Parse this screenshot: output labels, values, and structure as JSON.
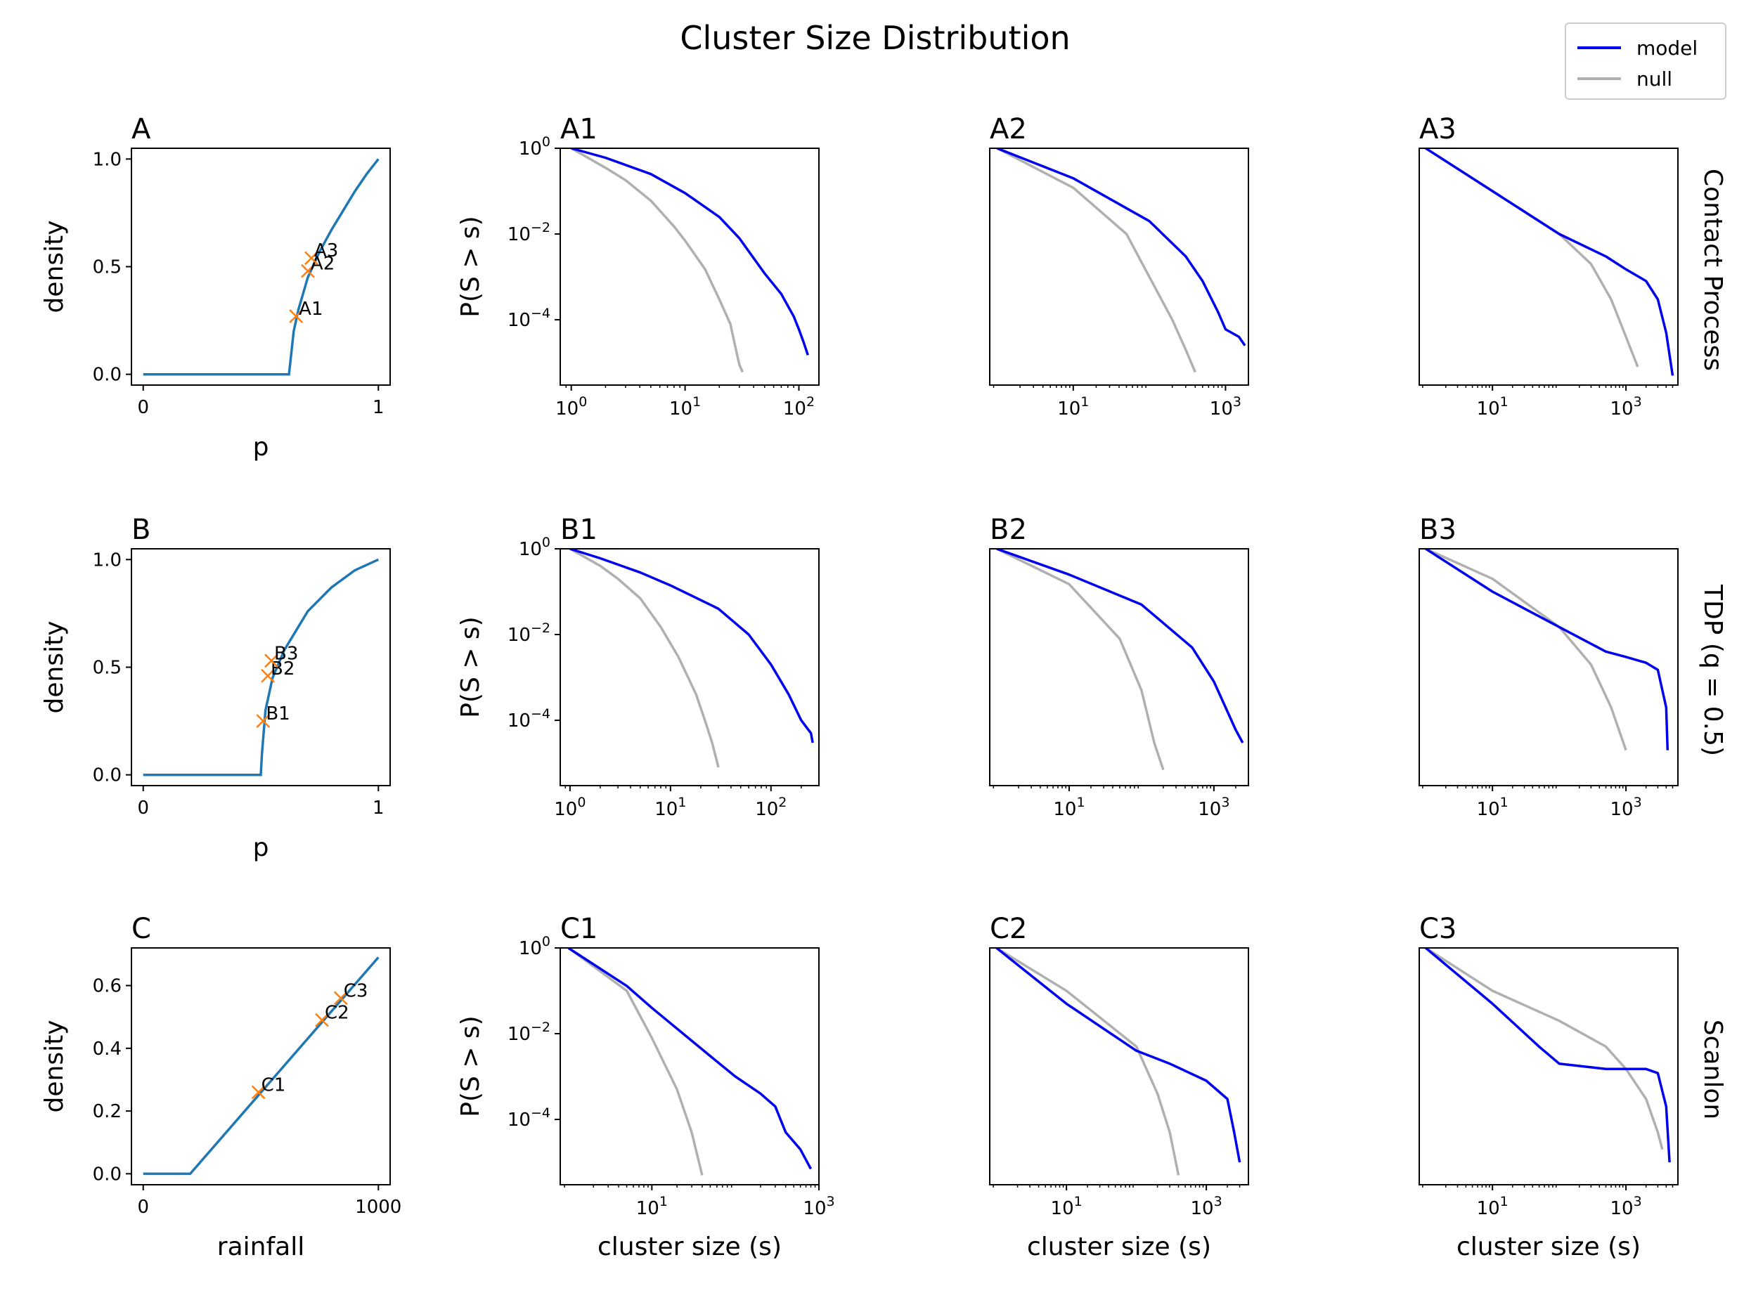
{
  "title": "Cluster Size Distribution",
  "colors": {
    "model": "#0000ee",
    "null": "#b0b0b0",
    "density_curve": "#1f77b4",
    "marker": "#ff7f0e"
  },
  "legend": {
    "position": "top-right",
    "entries": [
      {
        "label": "model",
        "color": "#0000ee"
      },
      {
        "label": "null",
        "color": "#b0b0b0"
      }
    ]
  },
  "row_labels": [
    "Contact Process",
    "TDP (q = 0.5)",
    "Scanlon"
  ],
  "chart_data": [
    {
      "type": "line",
      "panel": "A",
      "row": 0,
      "col": 0,
      "title": "A",
      "xlabel": "p",
      "ylabel": "density",
      "xlim": [
        -0.05,
        1.05
      ],
      "ylim": [
        -0.05,
        1.05
      ],
      "xticks": [
        0,
        1
      ],
      "yticks": [
        0.0,
        0.5,
        1.0
      ],
      "curve": {
        "x": [
          0,
          0.62,
          0.625,
          0.64,
          0.66,
          0.7,
          0.75,
          0.8,
          0.85,
          0.9,
          0.95,
          1.0
        ],
        "y": [
          0,
          0,
          0.05,
          0.2,
          0.3,
          0.45,
          0.57,
          0.67,
          0.76,
          0.85,
          0.93,
          1.0
        ]
      },
      "points": [
        {
          "label": "A1",
          "x": 0.65,
          "y": 0.27
        },
        {
          "label": "A2",
          "x": 0.7,
          "y": 0.48
        },
        {
          "label": "A3",
          "x": 0.715,
          "y": 0.54
        }
      ]
    },
    {
      "type": "line",
      "panel": "A1",
      "row": 0,
      "col": 1,
      "title": "A1",
      "ylabel": "P(S > s)",
      "xscale": "log",
      "yscale": "log",
      "xlim": [
        0.8,
        150
      ],
      "ylim": [
        3e-06,
        1
      ],
      "xticks": [
        "10^0",
        "10^1",
        "10^2"
      ],
      "yticks": [
        "10^0",
        "10^-2",
        "10^-4"
      ],
      "series": [
        {
          "name": "model",
          "x": [
            1,
            2,
            5,
            10,
            20,
            30,
            50,
            70,
            90,
            100,
            110,
            120
          ],
          "y": [
            1,
            0.6,
            0.25,
            0.09,
            0.025,
            0.008,
            0.0012,
            0.0004,
            0.00012,
            6e-05,
            3e-05,
            1.5e-05
          ]
        },
        {
          "name": "null",
          "x": [
            1,
            2,
            3,
            5,
            8,
            10,
            15,
            20,
            25,
            28,
            30,
            32
          ],
          "y": [
            1,
            0.35,
            0.18,
            0.06,
            0.015,
            0.007,
            0.0015,
            0.0003,
            8e-05,
            2e-05,
            9e-06,
            6e-06
          ]
        }
      ]
    },
    {
      "type": "line",
      "panel": "A2",
      "row": 0,
      "col": 2,
      "title": "A2",
      "xscale": "log",
      "yscale": "log",
      "xlim": [
        0.8,
        2000
      ],
      "ylim": [
        3e-06,
        1
      ],
      "xticks": [
        "10^1",
        "10^3"
      ],
      "series": [
        {
          "name": "model",
          "x": [
            1,
            10,
            100,
            300,
            500,
            800,
            1000,
            1500,
            1800
          ],
          "y": [
            1,
            0.2,
            0.02,
            0.003,
            0.0008,
            0.00015,
            6e-05,
            4e-05,
            2.5e-05
          ]
        },
        {
          "name": "null",
          "x": [
            1,
            10,
            50,
            100,
            200,
            300,
            400
          ],
          "y": [
            1,
            0.12,
            0.01,
            0.001,
            0.0001,
            2e-05,
            6e-06
          ]
        }
      ]
    },
    {
      "type": "line",
      "panel": "A3",
      "row": 0,
      "col": 3,
      "title": "A3",
      "xscale": "log",
      "yscale": "log",
      "xlim": [
        0.8,
        6000
      ],
      "ylim": [
        3e-06,
        1
      ],
      "xticks": [
        "10^1",
        "10^3"
      ],
      "series": [
        {
          "name": "model",
          "x": [
            1,
            10,
            100,
            500,
            1000,
            2000,
            3000,
            4000,
            5000
          ],
          "y": [
            1,
            0.1,
            0.01,
            0.003,
            0.0015,
            0.0008,
            0.0003,
            5e-05,
            5e-06
          ]
        },
        {
          "name": "null",
          "x": [
            1,
            10,
            100,
            300,
            600,
            1000,
            1500
          ],
          "y": [
            1,
            0.1,
            0.01,
            0.002,
            0.0003,
            4e-05,
            8e-06
          ]
        }
      ]
    },
    {
      "type": "line",
      "panel": "B",
      "row": 1,
      "col": 0,
      "title": "B",
      "xlabel": "p",
      "ylabel": "density",
      "xlim": [
        -0.05,
        1.05
      ],
      "ylim": [
        -0.05,
        1.05
      ],
      "xticks": [
        0,
        1
      ],
      "yticks": [
        0.0,
        0.5,
        1.0
      ],
      "curve": {
        "x": [
          0,
          0.5,
          0.505,
          0.52,
          0.55,
          0.6,
          0.7,
          0.8,
          0.9,
          1.0
        ],
        "y": [
          0,
          0,
          0.1,
          0.3,
          0.45,
          0.58,
          0.76,
          0.87,
          0.95,
          1.0
        ]
      },
      "points": [
        {
          "label": "B1",
          "x": 0.51,
          "y": 0.25
        },
        {
          "label": "B2",
          "x": 0.53,
          "y": 0.46
        },
        {
          "label": "B3",
          "x": 0.545,
          "y": 0.53
        }
      ]
    },
    {
      "type": "line",
      "panel": "B1",
      "row": 1,
      "col": 1,
      "title": "B1",
      "ylabel": "P(S > s)",
      "xscale": "log",
      "yscale": "log",
      "xlim": [
        0.8,
        300
      ],
      "ylim": [
        3e-06,
        1
      ],
      "xticks": [
        "10^0",
        "10^1",
        "10^2"
      ],
      "yticks": [
        "10^0",
        "10^-2",
        "10^-4"
      ],
      "series": [
        {
          "name": "model",
          "x": [
            1,
            2,
            5,
            10,
            30,
            60,
            100,
            150,
            200,
            250,
            260
          ],
          "y": [
            1,
            0.6,
            0.28,
            0.14,
            0.04,
            0.01,
            0.002,
            0.0004,
            0.0001,
            5e-05,
            3e-05
          ]
        },
        {
          "name": "null",
          "x": [
            1,
            2,
            3,
            5,
            8,
            12,
            18,
            22,
            26,
            30
          ],
          "y": [
            1,
            0.4,
            0.2,
            0.07,
            0.015,
            0.003,
            0.0004,
            0.0001,
            3e-05,
            8e-06
          ]
        }
      ]
    },
    {
      "type": "line",
      "panel": "B2",
      "row": 1,
      "col": 2,
      "title": "B2",
      "xscale": "log",
      "yscale": "log",
      "xlim": [
        0.8,
        3000
      ],
      "ylim": [
        3e-06,
        1
      ],
      "xticks": [
        "10^1",
        "10^3"
      ],
      "series": [
        {
          "name": "model",
          "x": [
            1,
            10,
            100,
            500,
            1000,
            2000,
            2500
          ],
          "y": [
            1,
            0.25,
            0.05,
            0.005,
            0.0008,
            6e-05,
            3e-05
          ]
        },
        {
          "name": "null",
          "x": [
            1,
            10,
            50,
            100,
            150,
            200
          ],
          "y": [
            1,
            0.15,
            0.008,
            0.0005,
            3e-05,
            7e-06
          ]
        }
      ]
    },
    {
      "type": "line",
      "panel": "B3",
      "row": 1,
      "col": 3,
      "title": "B3",
      "xscale": "log",
      "yscale": "log",
      "xlim": [
        0.8,
        6000
      ],
      "ylim": [
        3e-06,
        1
      ],
      "xticks": [
        "10^1",
        "10^3"
      ],
      "series": [
        {
          "name": "model",
          "x": [
            1,
            10,
            100,
            500,
            1000,
            2000,
            3000,
            4000,
            4200
          ],
          "y": [
            1,
            0.1,
            0.015,
            0.004,
            0.003,
            0.0022,
            0.0015,
            0.0002,
            2e-05
          ]
        },
        {
          "name": "null",
          "x": [
            1,
            10,
            100,
            300,
            600,
            1000
          ],
          "y": [
            1,
            0.2,
            0.015,
            0.002,
            0.0002,
            2e-05
          ]
        }
      ]
    },
    {
      "type": "line",
      "panel": "C",
      "row": 2,
      "col": 0,
      "title": "C",
      "xlabel": "rainfall",
      "ylabel": "density",
      "xlim": [
        -50,
        1050
      ],
      "ylim": [
        -0.035,
        0.72
      ],
      "xticks": [
        0,
        1000
      ],
      "yticks": [
        0.0,
        0.2,
        0.4,
        0.6
      ],
      "curve": {
        "x": [
          0,
          200,
          1000
        ],
        "y": [
          0,
          0,
          0.69
        ]
      },
      "points": [
        {
          "label": "C1",
          "x": 490,
          "y": 0.26
        },
        {
          "label": "C2",
          "x": 760,
          "y": 0.49
        },
        {
          "label": "C3",
          "x": 840,
          "y": 0.56
        }
      ]
    },
    {
      "type": "line",
      "panel": "C1",
      "row": 2,
      "col": 1,
      "title": "C1",
      "xlabel": "cluster size (s)",
      "ylabel": "P(S > s)",
      "xscale": "log",
      "yscale": "log",
      "xlim": [
        0.8,
        1000
      ],
      "ylim": [
        3e-06,
        1
      ],
      "xticks": [
        "10^1",
        "10^3"
      ],
      "yticks": [
        "10^0",
        "10^-2",
        "10^-4"
      ],
      "series": [
        {
          "name": "model",
          "x": [
            1,
            5,
            10,
            50,
            100,
            200,
            300,
            400,
            600,
            800
          ],
          "y": [
            1,
            0.13,
            0.04,
            0.003,
            0.001,
            0.0004,
            0.0002,
            5e-05,
            2e-05,
            7e-06
          ]
        },
        {
          "name": "null",
          "x": [
            1,
            5,
            10,
            20,
            30,
            40
          ],
          "y": [
            1,
            0.1,
            0.008,
            0.0005,
            5e-05,
            5e-06
          ]
        }
      ]
    },
    {
      "type": "line",
      "panel": "C2",
      "row": 2,
      "col": 2,
      "title": "C2",
      "xlabel": "cluster size (s)",
      "xscale": "log",
      "yscale": "log",
      "xlim": [
        0.8,
        4000
      ],
      "ylim": [
        3e-06,
        1
      ],
      "xticks": [
        "10^1",
        "10^3"
      ],
      "series": [
        {
          "name": "model",
          "x": [
            1,
            10,
            100,
            300,
            1000,
            2000,
            2500,
            3000
          ],
          "y": [
            1,
            0.05,
            0.004,
            0.002,
            0.0008,
            0.0003,
            5e-05,
            1e-05
          ]
        },
        {
          "name": "null",
          "x": [
            1,
            10,
            100,
            200,
            300,
            400
          ],
          "y": [
            1,
            0.1,
            0.005,
            0.0004,
            5e-05,
            5e-06
          ]
        }
      ]
    },
    {
      "type": "line",
      "panel": "C3",
      "row": 2,
      "col": 3,
      "title": "C3",
      "xlabel": "cluster size (s)",
      "xscale": "log",
      "yscale": "log",
      "xlim": [
        0.8,
        6000
      ],
      "ylim": [
        3e-06,
        1
      ],
      "xticks": [
        "10^1",
        "10^3"
      ],
      "series": [
        {
          "name": "model",
          "x": [
            1,
            10,
            50,
            100,
            500,
            1000,
            2000,
            3000,
            4000,
            4500
          ],
          "y": [
            1,
            0.05,
            0.005,
            0.002,
            0.0015,
            0.0015,
            0.0015,
            0.0012,
            0.0002,
            1e-05
          ]
        },
        {
          "name": "null",
          "x": [
            1,
            10,
            100,
            500,
            1000,
            2000,
            3000,
            3500
          ],
          "y": [
            1,
            0.1,
            0.02,
            0.005,
            0.0015,
            0.0003,
            5e-05,
            2e-05
          ]
        }
      ]
    }
  ]
}
